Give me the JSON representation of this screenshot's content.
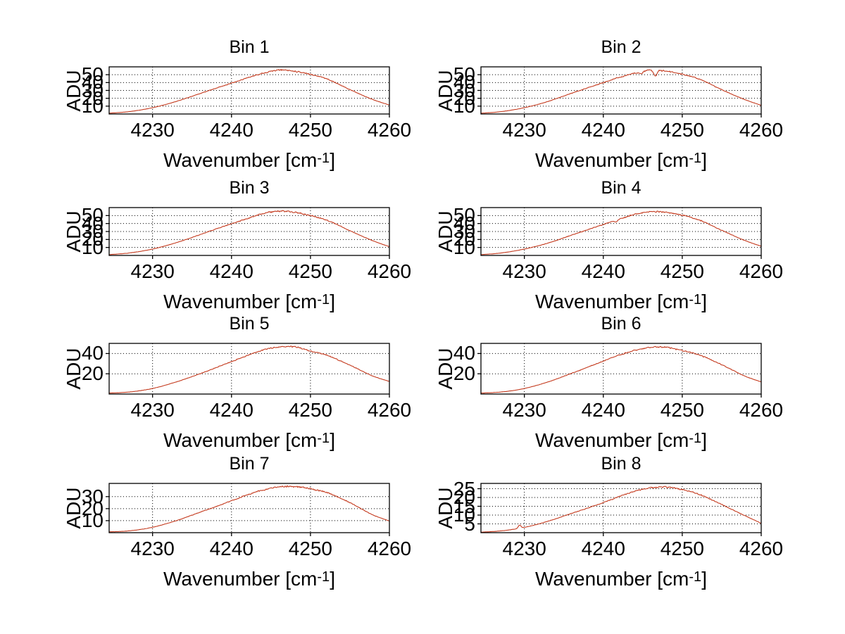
{
  "labels": {
    "y": "ADU",
    "x_main": "Wavenumber [cm",
    "x_sup": "-1",
    "x_close": "]"
  },
  "xticks": {
    "values": [
      4230,
      4240,
      4250,
      4260
    ],
    "labels": [
      "4230",
      "4240",
      "4250",
      "4260"
    ]
  },
  "colors": {
    "line": "#c43a1e",
    "axis": "#000000",
    "grid": "#000000",
    "background": "#ffffff",
    "text": "#000000"
  },
  "chart_data": [
    {
      "type": "line",
      "title": "Bin 1",
      "xlabel": "Wavenumber [cm-1]",
      "ylabel": "ADU",
      "xlim": [
        4224.5,
        4260
      ],
      "ylim": [
        0,
        60
      ],
      "grid": true,
      "legend": null,
      "yticks": [
        10,
        20,
        30,
        40,
        50
      ],
      "ytick_labels": [
        "10",
        "20",
        "30",
        "40",
        "50"
      ],
      "x": [
        4224.5,
        4227,
        4230,
        4233,
        4236,
        4239,
        4242,
        4244,
        4246,
        4248,
        4250,
        4252,
        4255,
        4258,
        4260
      ],
      "values": [
        1,
        3,
        8,
        16,
        26,
        36,
        46,
        52,
        56,
        54.5,
        50.5,
        45,
        31,
        18,
        11.5
      ],
      "noise": 1.1,
      "seed": 11,
      "features": []
    },
    {
      "type": "line",
      "title": "Bin 2",
      "xlabel": "Wavenumber [cm-1]",
      "ylabel": "ADU",
      "xlim": [
        4224.5,
        4260
      ],
      "ylim": [
        0,
        60
      ],
      "grid": true,
      "legend": null,
      "yticks": [
        10,
        20,
        30,
        40,
        50
      ],
      "ytick_labels": [
        "10",
        "20",
        "30",
        "40",
        "50"
      ],
      "x": [
        4224.5,
        4227,
        4230,
        4233,
        4236,
        4239,
        4242,
        4244,
        4246,
        4248,
        4250,
        4252,
        4255,
        4258,
        4260
      ],
      "values": [
        1,
        3,
        8,
        16,
        26.5,
        36.5,
        46.5,
        52,
        56,
        54.5,
        50.5,
        45,
        31,
        18,
        11
      ],
      "noise": 1.1,
      "seed": 22,
      "features": [
        {
          "x": 4244.8,
          "dy": -3,
          "w": 0.25
        },
        {
          "x": 4246.6,
          "dy": -8,
          "w": 0.3
        }
      ]
    },
    {
      "type": "line",
      "title": "Bin 3",
      "xlabel": "Wavenumber [cm-1]",
      "ylabel": "ADU",
      "xlim": [
        4224.5,
        4260
      ],
      "ylim": [
        0,
        60
      ],
      "grid": true,
      "legend": null,
      "yticks": [
        10,
        20,
        30,
        40,
        50
      ],
      "ytick_labels": [
        "10",
        "20",
        "30",
        "40",
        "50"
      ],
      "x": [
        4224.5,
        4227,
        4230,
        4233,
        4236,
        4239,
        4242,
        4244,
        4246,
        4248,
        4250,
        4252,
        4255,
        4258,
        4260
      ],
      "values": [
        1,
        3,
        8,
        16,
        26,
        36.5,
        46,
        52.5,
        55.5,
        54,
        50,
        44.5,
        31,
        18,
        11
      ],
      "noise": 1.1,
      "seed": 33,
      "features": []
    },
    {
      "type": "line",
      "title": "Bin 4",
      "xlabel": "Wavenumber [cm-1]",
      "ylabel": "ADU",
      "xlim": [
        4224.5,
        4260
      ],
      "ylim": [
        0,
        60
      ],
      "grid": true,
      "legend": null,
      "yticks": [
        10,
        20,
        30,
        40,
        50
      ],
      "ytick_labels": [
        "10",
        "20",
        "30",
        "40",
        "50"
      ],
      "x": [
        4224.5,
        4227,
        4230,
        4233,
        4236,
        4239,
        4242,
        4244,
        4246,
        4248,
        4250,
        4252,
        4255,
        4258,
        4260
      ],
      "values": [
        1,
        3,
        8,
        15.5,
        25.5,
        35.5,
        45.5,
        51.5,
        55,
        54,
        50.5,
        45,
        31.5,
        18.5,
        11.5
      ],
      "noise": 1.1,
      "seed": 44,
      "features": [
        {
          "x": 4241.6,
          "dy": -2.5,
          "w": 0.25
        }
      ]
    },
    {
      "type": "line",
      "title": "Bin 5",
      "xlabel": "Wavenumber [cm-1]",
      "ylabel": "ADU",
      "xlim": [
        4224.5,
        4260
      ],
      "ylim": [
        0,
        50
      ],
      "grid": true,
      "legend": null,
      "yticks": [
        20,
        40
      ],
      "ytick_labels": [
        "20",
        "40"
      ],
      "x": [
        4224.5,
        4227,
        4230,
        4233,
        4236,
        4239,
        4242,
        4244,
        4246,
        4248,
        4250,
        4252,
        4255,
        4258,
        4260
      ],
      "values": [
        1,
        2,
        5.5,
        12,
        20,
        29,
        38,
        43.5,
        46.5,
        46.5,
        42.5,
        38.5,
        28.5,
        17.5,
        12.5
      ],
      "noise": 0.9,
      "seed": 55,
      "features": []
    },
    {
      "type": "line",
      "title": "Bin 6",
      "xlabel": "Wavenumber [cm-1]",
      "ylabel": "ADU",
      "xlim": [
        4224.5,
        4260
      ],
      "ylim": [
        0,
        50
      ],
      "grid": true,
      "legend": null,
      "yticks": [
        20,
        40
      ],
      "ytick_labels": [
        "20",
        "40"
      ],
      "x": [
        4224.5,
        4227,
        4230,
        4233,
        4236,
        4239,
        4242,
        4244,
        4246,
        4248,
        4250,
        4252,
        4255,
        4258,
        4260
      ],
      "values": [
        1,
        2,
        5.5,
        12,
        20.5,
        29.5,
        38.5,
        43,
        46,
        46,
        43,
        39,
        29,
        17.5,
        12
      ],
      "noise": 0.9,
      "seed": 66,
      "features": []
    },
    {
      "type": "line",
      "title": "Bin 7",
      "xlabel": "Wavenumber [cm-1]",
      "ylabel": "ADU",
      "xlim": [
        4224.5,
        4260
      ],
      "ylim": [
        0,
        41
      ],
      "grid": true,
      "legend": null,
      "yticks": [
        10,
        20,
        30
      ],
      "ytick_labels": [
        "10",
        "20",
        "30"
      ],
      "x": [
        4224.5,
        4227,
        4230,
        4233,
        4236,
        4239,
        4242,
        4244,
        4246,
        4248,
        4250,
        4252,
        4255,
        4258,
        4260
      ],
      "values": [
        0.7,
        1.5,
        4.5,
        10,
        17,
        24,
        31.5,
        35.5,
        38,
        38.5,
        36.5,
        33.5,
        25,
        14.5,
        9.7
      ],
      "noise": 0.8,
      "seed": 77,
      "features": []
    },
    {
      "type": "line",
      "title": "Bin 8",
      "xlabel": "Wavenumber [cm-1]",
      "ylabel": "ADU",
      "xlim": [
        4224.5,
        4260
      ],
      "ylim": [
        0,
        28
      ],
      "grid": true,
      "legend": null,
      "yticks": [
        5,
        10,
        15,
        20,
        25
      ],
      "ytick_labels": [
        "5",
        "10",
        "15",
        "20",
        "25"
      ],
      "x": [
        4224.5,
        4227,
        4230,
        4233,
        4236,
        4239,
        4242,
        4244,
        4246,
        4248,
        4250,
        4252,
        4255,
        4258,
        4260
      ],
      "values": [
        0.3,
        1,
        3,
        6.5,
        11,
        15.5,
        20.5,
        23.5,
        25.5,
        26,
        24.5,
        22,
        16,
        9.5,
        5.4
      ],
      "noise": 0.55,
      "seed": 88,
      "features": [
        {
          "x": 4229.4,
          "dy": 1.8,
          "w": 0.25
        }
      ]
    }
  ]
}
